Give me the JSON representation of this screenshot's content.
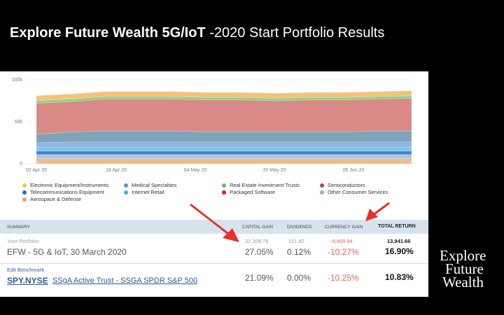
{
  "header": {
    "title_bold": "Explore Future Wealth 5G/IoT",
    "title_light": " -2020 Start Portfolio Results"
  },
  "chart_data": {
    "type": "area",
    "y_ticks": [
      "100k",
      "50k",
      "0"
    ],
    "x_ticks": [
      "02 Apr 20",
      "18 Apr 20",
      "04 May 20",
      "20 May 20",
      "05 Jun 20"
    ],
    "ylim": [
      0,
      100000
    ],
    "stacked": true,
    "series": [
      {
        "name": "Aerospace & Defense",
        "color": "#f2b98a"
      },
      {
        "name": "Other Consumer Services",
        "color": "#a9c6e8"
      },
      {
        "name": "Telecommunications Equipment",
        "color": "#4a7fc1"
      },
      {
        "name": "Internet Retail",
        "color": "#7fc7e6"
      },
      {
        "name": "Medical Specialties",
        "color": "#8db4e2"
      },
      {
        "name": "Packaged Software",
        "color": "#7fa3b8"
      },
      {
        "name": "Semiconductors",
        "color": "#d98a86"
      },
      {
        "name": "Real Estate Investment Trusts",
        "color": "#8fd18a"
      },
      {
        "name": "Electronic Equipment/Instruments",
        "color": "#f3c37a"
      }
    ]
  },
  "legend": [
    {
      "label": "Electronic Equipment/Instruments",
      "color": "#f2c14e"
    },
    {
      "label": "Medical Specialties",
      "color": "#5b8fd6"
    },
    {
      "label": "Real Estate Investment Trusts",
      "color": "#5fbf5a"
    },
    {
      "label": "Semiconductors",
      "color": "#b04a48"
    },
    {
      "label": "Telecommunications Equipment",
      "color": "#1f77b4"
    },
    {
      "label": "Internet Retail",
      "color": "#3cb6d8"
    },
    {
      "label": "Packaged Software",
      "color": "#e02020"
    },
    {
      "label": "Other Consumer Services",
      "color": "#8fb4dc"
    },
    {
      "label": "Aerospace & Defense",
      "color": "#f0a060"
    }
  ],
  "summary": {
    "headers": {
      "summary": "SUMMARY",
      "capital_gain": "CAPITAL GAIN",
      "dividends": "DIVIDENDS",
      "currency_gain": "CURRENCY GAIN",
      "total_return": "TOTAL RETURN"
    },
    "portfolio": {
      "label": "Your Portfolio:",
      "name": "EFW - 5G & IoT, 30 March 2020",
      "capital_gain_value": "22,309.78",
      "capital_gain_pct": "27.05%",
      "dividends_value": "101.82",
      "dividends_pct": "0.12%",
      "currency_gain_value": "-8,469.94",
      "currency_gain_pct": "-10.27%",
      "total_return_value": "13,941.66",
      "total_return_pct": "16.90%"
    },
    "benchmark": {
      "edit_label": "Edit Benchmark",
      "ticker": "SPY.NYSE",
      "name": "SSgA Active Trust - SSGA SPDR S&P 500",
      "capital_gain_pct": "21.09%",
      "dividends_pct": "0.00%",
      "currency_gain_pct": "-10.25%",
      "total_return_pct": "10.83%"
    }
  },
  "logo": {
    "line1": "Explore",
    "line2": "Future",
    "line3": "Wealth"
  },
  "colors": {
    "arrow": "#e8312a",
    "header_bg": "#d6e2ee",
    "negative": "#e0665a"
  }
}
